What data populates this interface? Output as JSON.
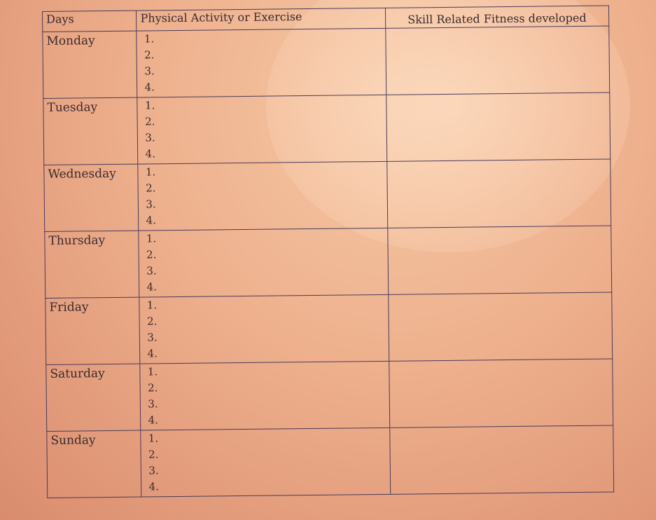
{
  "table": {
    "headers": [
      "Days",
      "Physical Activity or Exercise",
      "Skill Related Fitness developed"
    ],
    "days": [
      "Monday",
      "Tuesday",
      "Wednesday",
      "Thursday",
      "Friday",
      "Saturday",
      "Sunday"
    ],
    "numbers": [
      "1.",
      "2.",
      "3.",
      "4."
    ]
  }
}
